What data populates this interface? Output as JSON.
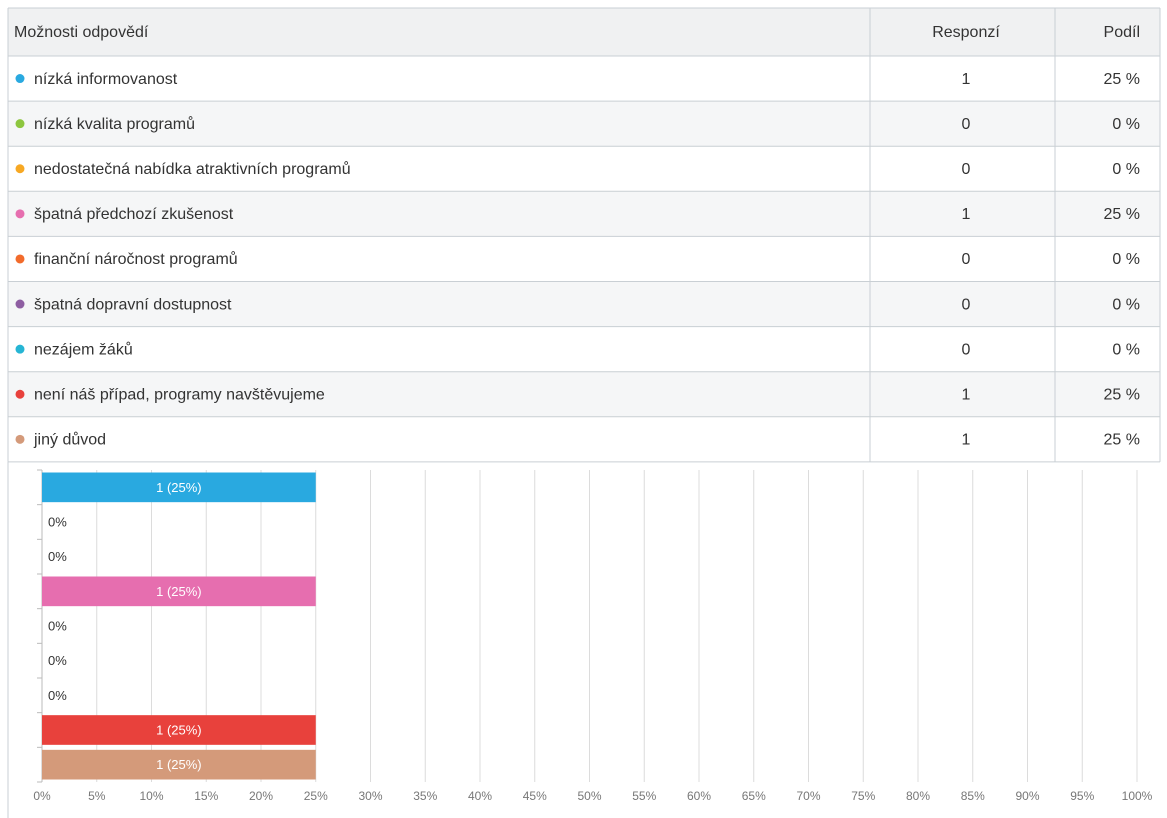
{
  "table": {
    "header": [
      "Možnosti odpovědí",
      "Responzí",
      "Podíl"
    ],
    "rows": [
      [
        "nízká informovanost",
        "1",
        "25 %"
      ],
      [
        "nízká kvalita programů",
        "0",
        "0 %"
      ],
      [
        "nedostatečná nabídka atraktivních programů",
        "0",
        "0 %"
      ],
      [
        "špatná předchozí zkušenost",
        "1",
        "25 %"
      ],
      [
        "finanční náročnost programů",
        "0",
        "0 %"
      ],
      [
        "špatná dopravní dostupnost",
        "0",
        "0 %"
      ],
      [
        "nezájem žáků",
        "0",
        "0 %"
      ],
      [
        "není náš případ, programy navštěvujeme",
        "1",
        "25 %"
      ],
      [
        "jiný důvod",
        "1",
        "25 %"
      ]
    ]
  },
  "chart_data": {
    "type": "bar",
    "orientation": "horizontal",
    "values": [
      25,
      0,
      0,
      25,
      0,
      0,
      0,
      25,
      25
    ],
    "value_labels": [
      "1 (25%)",
      "0%",
      "0%",
      "1 (25%)",
      "0%",
      "0%",
      "0%",
      "1 (25%)",
      "1 (25%)"
    ],
    "colors": [
      "#29a9e0",
      "#8dc63f",
      "#f7a823",
      "#e66eaf",
      "#f26b2b",
      "#8e5ea2",
      "#26b5d4",
      "#e8413c",
      "#d49a7a"
    ],
    "xlim": [
      0,
      100
    ],
    "xticks": [
      {
        "value": 0,
        "label": "0%"
      },
      {
        "value": 5,
        "label": "5%"
      },
      {
        "value": 10,
        "label": "10%"
      },
      {
        "value": 15,
        "label": "15%"
      },
      {
        "value": 20,
        "label": "20%"
      },
      {
        "value": 25,
        "label": "25%"
      },
      {
        "value": 30,
        "label": "30%"
      },
      {
        "value": 35,
        "label": "35%"
      },
      {
        "value": 40,
        "label": "40%"
      },
      {
        "value": 45,
        "label": "45%"
      },
      {
        "value": 50,
        "label": "50%"
      },
      {
        "value": 55,
        "label": "55%"
      },
      {
        "value": 60,
        "label": "60%"
      },
      {
        "value": 65,
        "label": "65%"
      },
      {
        "value": 70,
        "label": "70%"
      },
      {
        "value": 75,
        "label": "75%"
      },
      {
        "value": 80,
        "label": "80%"
      },
      {
        "value": 85,
        "label": "85%"
      },
      {
        "value": 90,
        "label": "90%"
      },
      {
        "value": 95,
        "label": "95%"
      },
      {
        "value": 100,
        "label": "100%"
      }
    ],
    "grid": true
  }
}
